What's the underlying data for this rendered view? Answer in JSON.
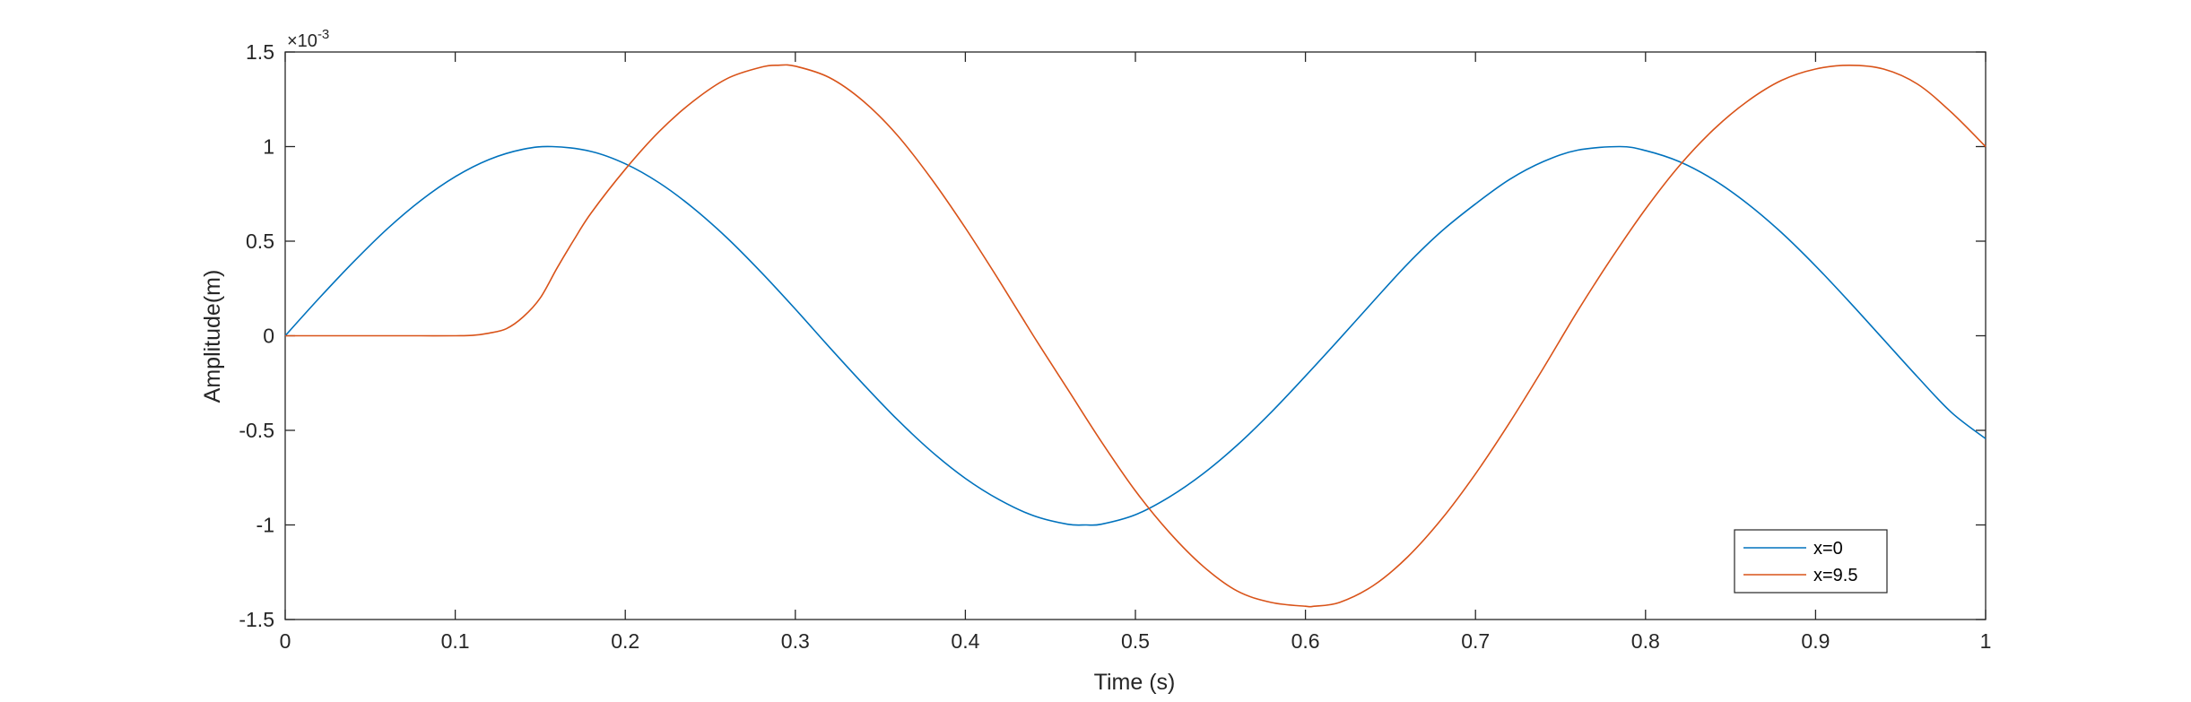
{
  "chart_data": {
    "type": "line",
    "title": "",
    "xlabel": "Time (s)",
    "ylabel": "Amplitude(m)",
    "xlim": [
      0,
      1
    ],
    "ylim": [
      -0.0015,
      0.0015
    ],
    "y_exponent_label": "×10",
    "y_exponent_power": "-3",
    "xticks": [
      {
        "value": 0,
        "label": "0"
      },
      {
        "value": 0.1,
        "label": "0.1"
      },
      {
        "value": 0.2,
        "label": "0.2"
      },
      {
        "value": 0.3,
        "label": "0.3"
      },
      {
        "value": 0.4,
        "label": "0.4"
      },
      {
        "value": 0.5,
        "label": "0.5"
      },
      {
        "value": 0.6,
        "label": "0.6"
      },
      {
        "value": 0.7,
        "label": "0.7"
      },
      {
        "value": 0.8,
        "label": "0.8"
      },
      {
        "value": 0.9,
        "label": "0.9"
      },
      {
        "value": 1,
        "label": "1"
      }
    ],
    "yticks": [
      {
        "value": 0.0015,
        "label": "1.5"
      },
      {
        "value": 0.001,
        "label": "1"
      },
      {
        "value": 0.0005,
        "label": "0.5"
      },
      {
        "value": 0,
        "label": "0"
      },
      {
        "value": -0.0005,
        "label": "-0.5"
      },
      {
        "value": -0.001,
        "label": "-1"
      },
      {
        "value": -0.0015,
        "label": "-1.5"
      }
    ],
    "grid": false,
    "legend_position": "bottom-right",
    "series": [
      {
        "name": "x=0",
        "color": "#0072BD",
        "x": [
          0,
          0.02,
          0.04,
          0.06,
          0.08,
          0.1,
          0.12,
          0.14,
          0.157,
          0.18,
          0.2,
          0.22,
          0.24,
          0.26,
          0.28,
          0.3,
          0.32,
          0.34,
          0.36,
          0.38,
          0.4,
          0.42,
          0.44,
          0.46,
          0.471,
          0.48,
          0.5,
          0.52,
          0.54,
          0.56,
          0.58,
          0.6,
          0.62,
          0.64,
          0.66,
          0.68,
          0.7,
          0.72,
          0.74,
          0.76,
          0.785,
          0.8,
          0.82,
          0.84,
          0.86,
          0.88,
          0.9,
          0.92,
          0.94,
          0.96,
          0.98,
          1.0
        ],
        "y": [
          0,
          0.000199,
          0.000389,
          0.000565,
          0.000717,
          0.000841,
          0.000932,
          0.000986,
          0.001,
          0.000974,
          0.000909,
          0.000808,
          0.000675,
          0.000516,
          0.000335,
          0.000141,
          -6e-05,
          -0.000256,
          -0.000443,
          -0.000611,
          -0.000754,
          -0.000867,
          -0.000951,
          -0.000996,
          -0.001,
          -0.000996,
          -0.000946,
          -0.000852,
          -0.000728,
          -0.000577,
          -0.000403,
          -0.000213,
          -1.7e-05,
          0.000183,
          0.000379,
          0.000552,
          0.000697,
          0.000826,
          0.000921,
          0.000981,
          0.001,
          0.000979,
          0.00092,
          0.000825,
          0.000698,
          0.000545,
          0.000369,
          0.000178,
          -2e-05,
          -0.000218,
          -0.000406,
          -0.000544
        ]
      },
      {
        "name": "x=9.5",
        "color": "#D95319",
        "x": [
          0,
          0.02,
          0.04,
          0.06,
          0.08,
          0.1,
          0.11,
          0.12,
          0.13,
          0.14,
          0.15,
          0.16,
          0.17,
          0.18,
          0.2,
          0.22,
          0.24,
          0.26,
          0.28,
          0.29,
          0.3,
          0.32,
          0.34,
          0.36,
          0.38,
          0.4,
          0.42,
          0.44,
          0.46,
          0.48,
          0.5,
          0.52,
          0.54,
          0.56,
          0.58,
          0.6,
          0.605,
          0.62,
          0.64,
          0.66,
          0.68,
          0.7,
          0.72,
          0.74,
          0.76,
          0.78,
          0.8,
          0.82,
          0.84,
          0.86,
          0.88,
          0.9,
          0.92,
          0.94,
          0.96,
          0.98,
          1.0
        ],
        "y": [
          0,
          0,
          0,
          0,
          0,
          0,
          2e-06,
          1.4e-05,
          3.7e-05,
          0.0001,
          0.0002,
          0.00036,
          0.00051,
          0.00065,
          0.00088,
          0.00108,
          0.00124,
          0.00136,
          0.00142,
          0.00143,
          0.001425,
          0.001365,
          0.00124,
          0.00106,
          0.00083,
          0.00057,
          0.00029,
          0.0,
          -0.00028,
          -0.00056,
          -0.00082,
          -0.00104,
          -0.00122,
          -0.00135,
          -0.00141,
          -0.00143,
          -0.00143,
          -0.00141,
          -0.00132,
          -0.00117,
          -0.00097,
          -0.00073,
          -0.00046,
          -0.00017,
          0.00013,
          0.00041,
          0.00067,
          0.0009,
          0.00109,
          0.00124,
          0.00135,
          0.00141,
          0.00143,
          0.00141,
          0.00133,
          0.00118,
          0.001
        ]
      }
    ]
  }
}
